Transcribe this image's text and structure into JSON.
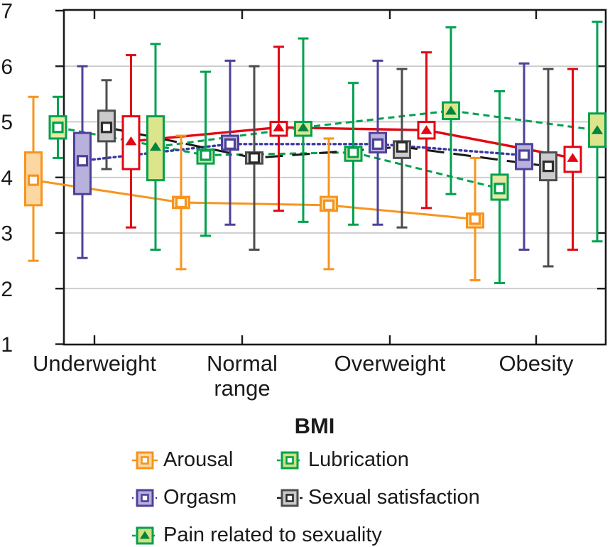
{
  "style": {
    "background": "#FFFFFF",
    "frame": "#1A1A1A",
    "gridline": "#C8C8C8",
    "text": "#1A1A1A"
  },
  "x_axis": {
    "label": "BMI",
    "categories": [
      "Underweight",
      "Normal range",
      "Overweight",
      "Obesity"
    ]
  },
  "y_axis": {
    "min": 1,
    "max": 7,
    "ticks": [
      7,
      6,
      5,
      4,
      3,
      2,
      1
    ],
    "gridlines": [
      6,
      5,
      4,
      3,
      2
    ]
  },
  "legend": {
    "items": [
      {
        "label": "Arousal",
        "series": "arousal"
      },
      {
        "label": "Lubrication",
        "series": "lubrication"
      },
      {
        "label": "Orgasm",
        "series": "orgasm"
      },
      {
        "label": "Sexual satisfaction",
        "series": "satisfaction"
      },
      {
        "label": "Pain related to sexuality",
        "series": "pain"
      }
    ]
  },
  "chart_data": {
    "type": "box",
    "title": "",
    "xlabel": "BMI",
    "ylabel": "",
    "ylim": [
      1,
      7
    ],
    "grid": true,
    "legend_position": "bottom",
    "categories": [
      "Underweight",
      "Normal range",
      "Overweight",
      "Obesity"
    ],
    "series": [
      {
        "id": "arousal",
        "legend_label": "Arousal",
        "line": {
          "color": "#F7941E",
          "style": "solid",
          "width": 3
        },
        "box": {
          "border": "#F7941E",
          "fill": "#FBD8A2"
        },
        "marker": {
          "type": "square",
          "color": "#F7941E"
        },
        "values": [
          {
            "low": 2.5,
            "q1": 3.5,
            "mid": 3.95,
            "q3": 4.45,
            "high": 5.45
          },
          {
            "low": 2.35,
            "q1": 3.45,
            "mid": 3.55,
            "q3": 3.65,
            "high": 4.75
          },
          {
            "low": 2.35,
            "q1": 3.4,
            "mid": 3.5,
            "q3": 3.65,
            "high": 4.7
          },
          {
            "low": 2.15,
            "q1": 3.1,
            "mid": 3.25,
            "q3": 3.35,
            "high": 4.35
          }
        ]
      },
      {
        "id": "lubrication",
        "legend_label": "Lubrication",
        "line": {
          "color": "#00A14E",
          "style": "dashed",
          "width": 3
        },
        "box": {
          "border": "#00A14E",
          "fill": "#E6E8A3",
          "legend_fill": "#D5E07E"
        },
        "marker": {
          "type": "square",
          "color": "#00A14E"
        },
        "values": [
          {
            "low": 4.35,
            "q1": 4.7,
            "mid": 4.9,
            "q3": 5.1,
            "high": 5.45
          },
          {
            "low": 2.95,
            "q1": 4.25,
            "mid": 4.4,
            "q3": 4.5,
            "high": 5.9
          },
          {
            "low": 3.15,
            "q1": 4.3,
            "mid": 4.45,
            "q3": 4.55,
            "high": 5.7
          },
          {
            "low": 2.1,
            "q1": 3.6,
            "mid": 3.8,
            "q3": 4.05,
            "high": 5.55
          }
        ]
      },
      {
        "id": "orgasm",
        "legend_label": "Orgasm",
        "line": {
          "color": "#3B37A3",
          "style": "dotted",
          "width": 3.4
        },
        "box": {
          "border": "#4D4199",
          "fill": "#B7B1DB"
        },
        "marker": {
          "type": "square",
          "color": "#4D4199"
        },
        "values": [
          {
            "low": 2.55,
            "q1": 3.7,
            "mid": 4.3,
            "q3": 4.8,
            "high": 6.0
          },
          {
            "low": 3.15,
            "q1": 4.5,
            "mid": 4.6,
            "q3": 4.75,
            "high": 6.1
          },
          {
            "low": 3.15,
            "q1": 4.45,
            "mid": 4.6,
            "q3": 4.8,
            "high": 6.1
          },
          {
            "low": 2.7,
            "q1": 4.15,
            "mid": 4.4,
            "q3": 4.6,
            "high": 6.05
          }
        ]
      },
      {
        "id": "satisfaction",
        "legend_label": "Sexual satisfaction",
        "line": {
          "color": "#1A1A1A",
          "style": "long-dash",
          "width": 3
        },
        "box": {
          "border": "#4D4D4D",
          "fill": "#CBCBCD"
        },
        "marker": {
          "type": "square",
          "color": "#2B2B2B"
        },
        "values": [
          {
            "low": 4.15,
            "q1": 4.65,
            "mid": 4.9,
            "q3": 5.2,
            "high": 5.75
          },
          {
            "low": 2.7,
            "q1": 4.25,
            "mid": 4.35,
            "q3": 4.45,
            "high": 6.0
          },
          {
            "low": 3.1,
            "q1": 4.35,
            "mid": 4.55,
            "q3": 4.65,
            "high": 5.95
          },
          {
            "low": 2.4,
            "q1": 3.95,
            "mid": 4.2,
            "q3": 4.45,
            "high": 5.95
          }
        ]
      },
      {
        "id": "red",
        "legend_label": null,
        "line": {
          "color": "#E30613",
          "style": "solid",
          "width": 3.4
        },
        "box": {
          "border": "#E30613",
          "fill": "#FFFFFF"
        },
        "marker": {
          "type": "triangle",
          "color": "#E30613"
        },
        "values": [
          {
            "low": 3.1,
            "q1": 4.15,
            "mid": 4.65,
            "q3": 5.1,
            "high": 6.2
          },
          {
            "low": 3.4,
            "q1": 4.75,
            "mid": 4.9,
            "q3": 5.0,
            "high": 6.35
          },
          {
            "low": 3.45,
            "q1": 4.7,
            "mid": 4.85,
            "q3": 5.0,
            "high": 6.25
          },
          {
            "low": 2.7,
            "q1": 4.1,
            "mid": 4.35,
            "q3": 4.55,
            "high": 5.95
          }
        ]
      },
      {
        "id": "pain",
        "legend_label": "Pain related to sexuality",
        "line": {
          "color": "#00A14E",
          "style": "dashed",
          "width": 3
        },
        "box": {
          "border": "#00A14E",
          "fill": "#DCE58C",
          "legend_fill": "#D5E07E"
        },
        "marker": {
          "type": "triangle",
          "color": "#00843F"
        },
        "values": [
          {
            "low": 2.7,
            "q1": 3.95,
            "mid": 4.55,
            "q3": 5.1,
            "high": 6.4
          },
          {
            "low": 3.2,
            "q1": 4.75,
            "mid": 4.9,
            "q3": 5.0,
            "high": 6.5
          },
          {
            "low": 3.7,
            "q1": 5.05,
            "mid": 5.2,
            "q3": 5.35,
            "high": 6.7
          },
          {
            "low": 2.85,
            "q1": 4.55,
            "mid": 4.85,
            "q3": 5.15,
            "high": 6.8
          }
        ]
      }
    ]
  }
}
